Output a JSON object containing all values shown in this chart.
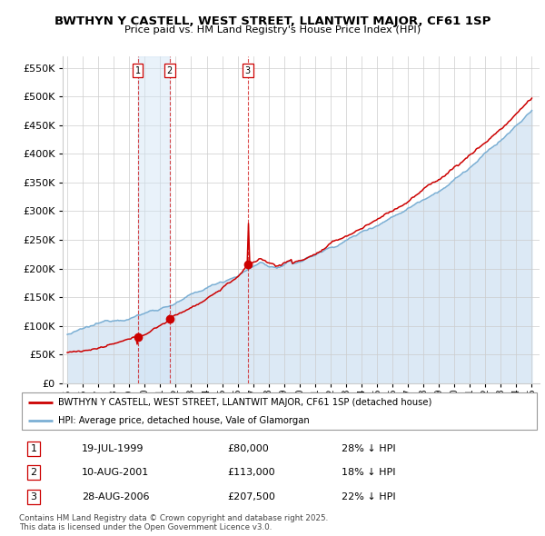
{
  "title": "BWTHYN Y CASTELL, WEST STREET, LLANTWIT MAJOR, CF61 1SP",
  "subtitle": "Price paid vs. HM Land Registry's House Price Index (HPI)",
  "legend_line1": "BWTHYN Y CASTELL, WEST STREET, LLANTWIT MAJOR, CF61 1SP (detached house)",
  "legend_line2": "HPI: Average price, detached house, Vale of Glamorgan",
  "transactions": [
    {
      "num": 1,
      "date": "19-JUL-1999",
      "price": "£80,000",
      "pct": "28% ↓ HPI",
      "year": 1999.55,
      "price_val": 80000
    },
    {
      "num": 2,
      "date": "10-AUG-2001",
      "price": "£113,000",
      "pct": "18% ↓ HPI",
      "year": 2001.61,
      "price_val": 113000
    },
    {
      "num": 3,
      "date": "28-AUG-2006",
      "price": "£207,500",
      "pct": "22% ↓ HPI",
      "year": 2006.66,
      "price_val": 207500
    }
  ],
  "red_color": "#cc0000",
  "blue_color": "#7bafd4",
  "shade_color": "#dce9f5",
  "footer": "Contains HM Land Registry data © Crown copyright and database right 2025.\nThis data is licensed under the Open Government Licence v3.0.",
  "ylim": [
    0,
    570000
  ],
  "yticks": [
    0,
    50000,
    100000,
    150000,
    200000,
    250000,
    300000,
    350000,
    400000,
    450000,
    500000,
    550000
  ],
  "xmin": 1994.7,
  "xmax": 2025.5
}
